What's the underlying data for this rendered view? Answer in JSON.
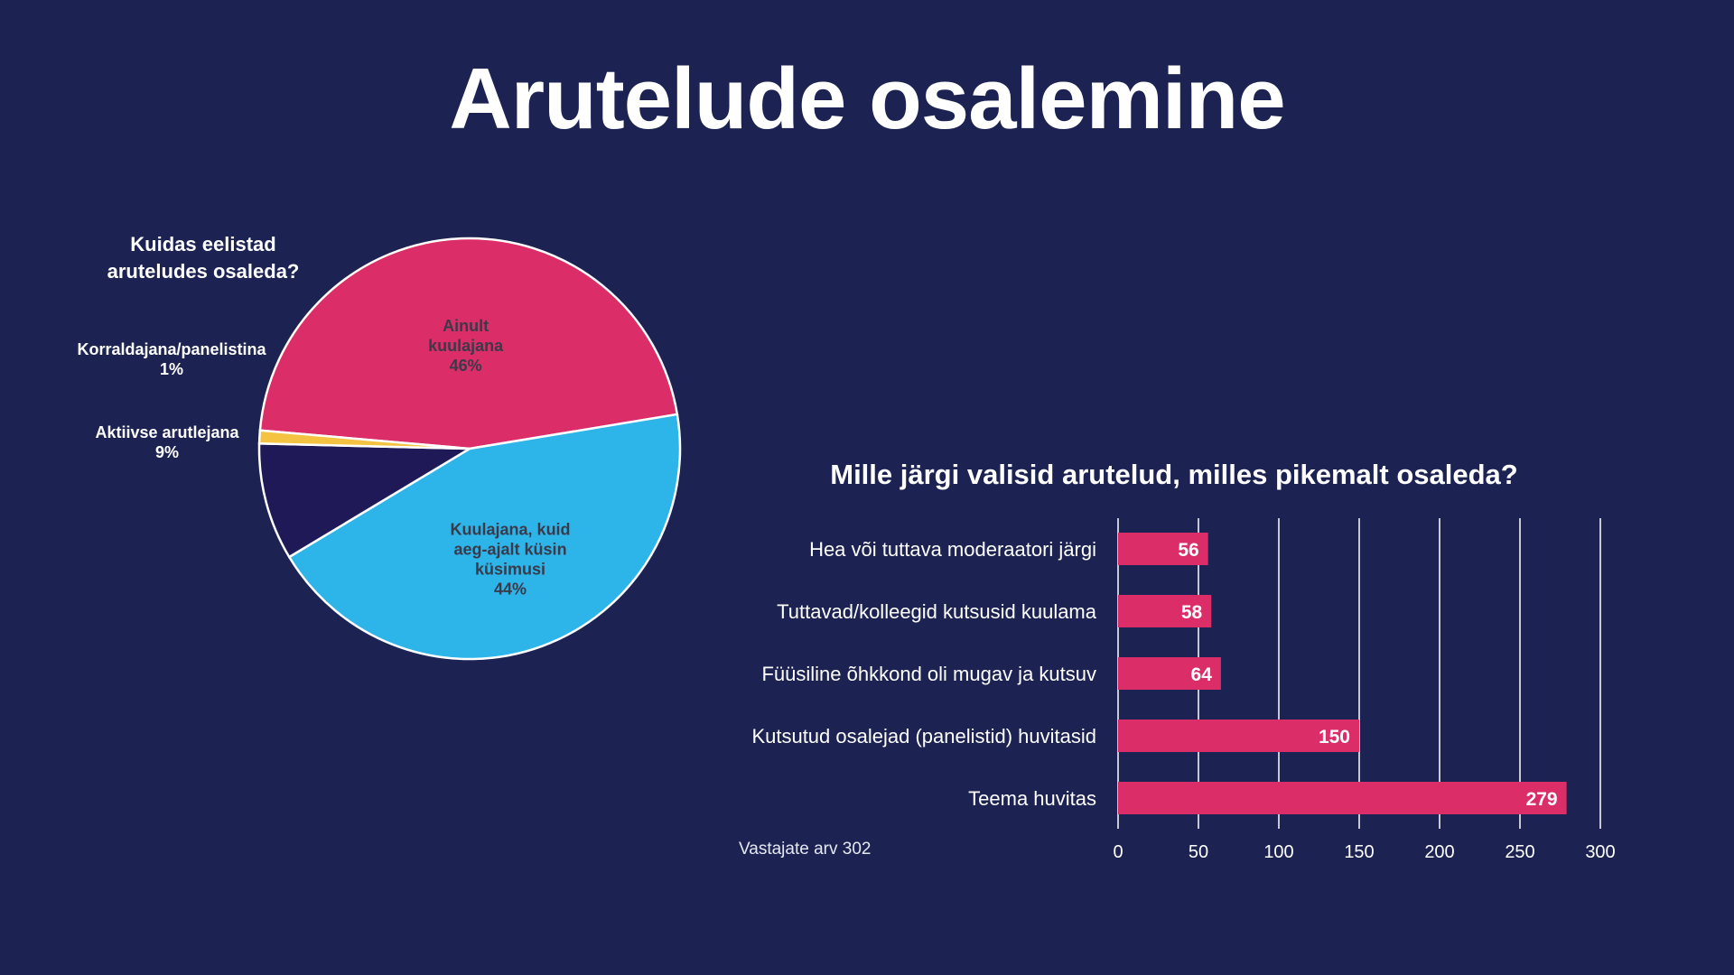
{
  "title": "Arutelude osalemine",
  "colors": {
    "background": "#1c2352",
    "pink": "#db2e68",
    "blue": "#2db4e8",
    "navy": "#1f1a57",
    "yellow": "#f5c342",
    "white": "#ffffff"
  },
  "footnote": "Vastajate arv 302",
  "chart_data": [
    {
      "type": "pie",
      "title": "Kuidas eelistad aruteludes osaleda?",
      "slices": [
        {
          "label": "Ainult kuulajana",
          "label_lines": [
            "Ainult",
            "kuulajana"
          ],
          "value": 46,
          "display": "46%",
          "color": "#db2e68",
          "label_color": "#3a3a4a"
        },
        {
          "label": "Kuulajana, kuid aeg-ajalt küsin küsimusi",
          "label_lines": [
            "Kuulajana, kuid",
            "aeg-ajalt küsin",
            "küsimusi"
          ],
          "value": 44,
          "display": "44%",
          "color": "#2db4e8",
          "label_color": "#3a3a4a"
        },
        {
          "label": "Aktiivse arutlejana",
          "label_lines": [
            "Aktiivse arutlejana"
          ],
          "value": 9,
          "display": "9%",
          "color": "#1f1a57",
          "label_color": "#ffffff"
        },
        {
          "label": "Korraldajana/panelistina",
          "label_lines": [
            "Korraldajana/panelistina"
          ],
          "value": 1,
          "display": "1%",
          "color": "#f5c342",
          "label_color": "#ffffff"
        }
      ]
    },
    {
      "type": "bar",
      "orientation": "horizontal",
      "title": "Mille järgi valisid arutelud, milles pikemalt osaleda?",
      "categories": [
        "Hea või tuttava moderaatori järgi",
        "Tuttavad/kolleegid kutsusid kuulama",
        "Füüsiline õhkkond oli mugav ja kutsuv",
        "Kutsutud osalejad (panelistid) huvitasid",
        "Teema huvitas"
      ],
      "values": [
        56,
        58,
        64,
        150,
        279
      ],
      "xlim": [
        0,
        300
      ],
      "xticks": [
        0,
        50,
        100,
        150,
        200,
        250,
        300
      ],
      "grid": true,
      "bar_color": "#db2e68"
    }
  ]
}
